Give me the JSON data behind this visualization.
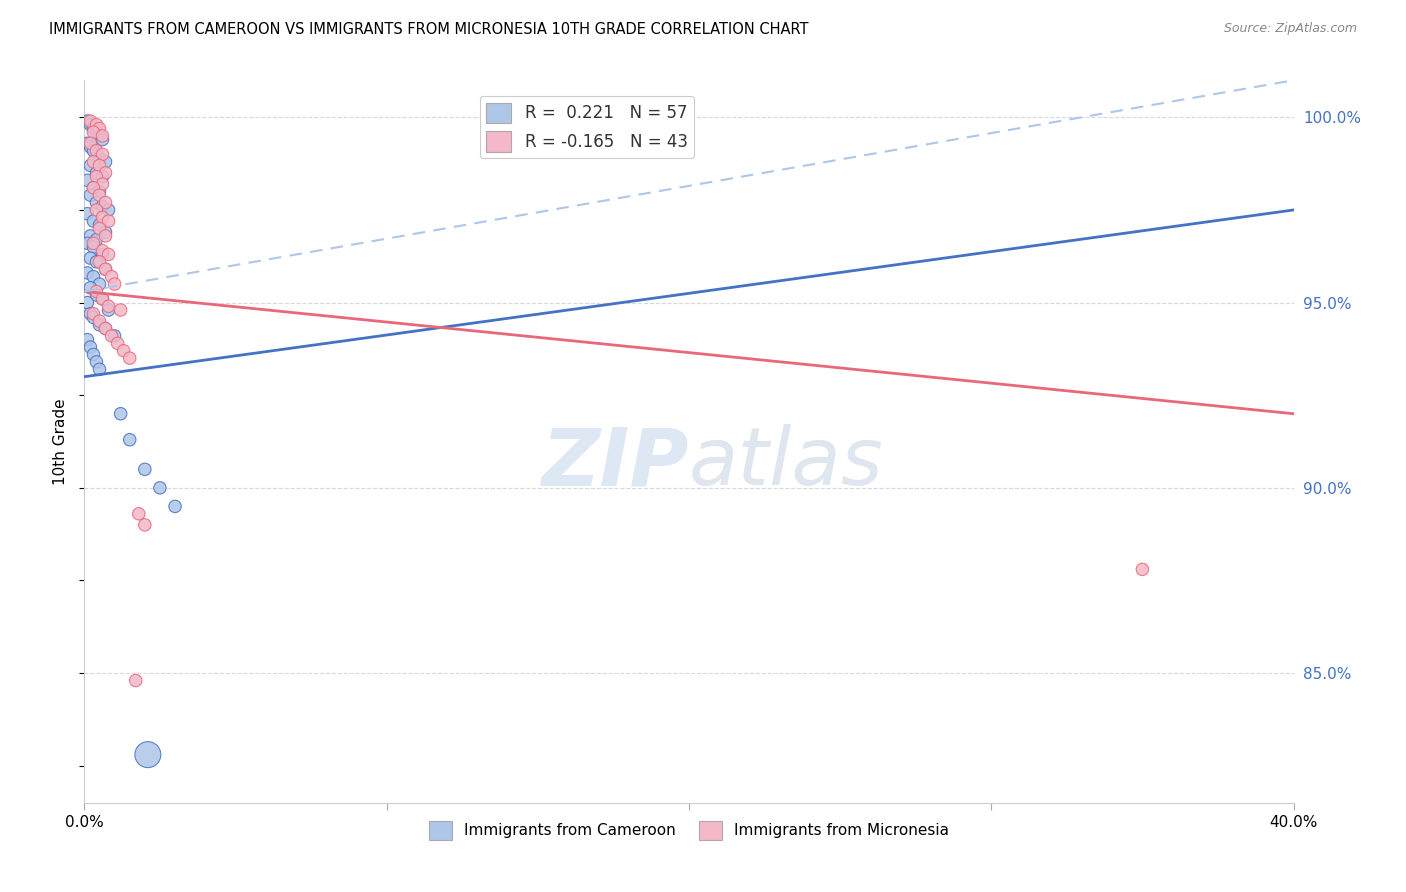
{
  "title": "IMMIGRANTS FROM CAMEROON VS IMMIGRANTS FROM MICRONESIA 10TH GRADE CORRELATION CHART",
  "source": "Source: ZipAtlas.com",
  "ylabel": "10th Grade",
  "right_yticks": [
    "100.0%",
    "95.0%",
    "90.0%",
    "85.0%"
  ],
  "right_ytick_vals": [
    1.0,
    0.95,
    0.9,
    0.85
  ],
  "legend_r1": "R =  0.221",
  "legend_n1": "N = 57",
  "legend_r2": "R = -0.165",
  "legend_n2": "N = 43",
  "legend_label1": "Immigrants from Cameroon",
  "legend_label2": "Immigrants from Micronesia",
  "blue_color": "#aec6e8",
  "pink_color": "#f4b8c8",
  "blue_line_color": "#4472c4",
  "pink_line_color": "#e8687a",
  "dashed_color": "#aec6e8",
  "blue_line": {
    "x0": 0.0,
    "y0": 0.93,
    "x1": 0.4,
    "y1": 0.975
  },
  "pink_line": {
    "x0": 0.0,
    "y0": 0.953,
    "x1": 0.4,
    "y1": 0.92
  },
  "dashed_line": {
    "x0": 0.0,
    "y0": 0.953,
    "x1": 0.4,
    "y1": 1.01
  },
  "xmin": 0.0,
  "xmax": 0.4,
  "ymin": 0.815,
  "ymax": 1.01,
  "watermark_zip": "ZIP",
  "watermark_atlas": "atlas",
  "background_color": "#ffffff",
  "grid_color": "#d8d8d8",
  "blue_scatter_x": [
    0.001,
    0.002,
    0.003,
    0.004,
    0.005,
    0.006,
    0.001,
    0.002,
    0.003,
    0.005,
    0.007,
    0.002,
    0.004,
    0.006,
    0.001,
    0.003,
    0.005,
    0.002,
    0.004,
    0.006,
    0.008,
    0.001,
    0.003,
    0.005,
    0.007,
    0.002,
    0.004,
    0.001,
    0.003,
    0.006,
    0.002,
    0.004,
    0.007,
    0.001,
    0.003,
    0.005,
    0.002,
    0.004,
    0.006,
    0.001,
    0.008,
    0.002,
    0.003,
    0.005,
    0.007,
    0.01,
    0.012,
    0.015,
    0.02,
    0.025,
    0.03,
    0.001,
    0.002,
    0.003,
    0.004,
    0.005,
    0.021
  ],
  "blue_scatter_y": [
    0.999,
    0.998,
    0.997,
    0.996,
    0.995,
    0.994,
    0.993,
    0.992,
    0.991,
    0.989,
    0.988,
    0.987,
    0.985,
    0.984,
    0.983,
    0.981,
    0.98,
    0.979,
    0.977,
    0.976,
    0.975,
    0.974,
    0.972,
    0.971,
    0.969,
    0.968,
    0.967,
    0.966,
    0.965,
    0.963,
    0.962,
    0.961,
    0.959,
    0.958,
    0.957,
    0.955,
    0.954,
    0.952,
    0.951,
    0.95,
    0.948,
    0.947,
    0.946,
    0.944,
    0.943,
    0.941,
    0.92,
    0.913,
    0.905,
    0.9,
    0.895,
    0.94,
    0.938,
    0.936,
    0.934,
    0.932,
    0.828
  ],
  "blue_scatter_sizes": [
    80,
    80,
    80,
    80,
    80,
    80,
    80,
    80,
    80,
    80,
    80,
    80,
    80,
    80,
    80,
    80,
    80,
    80,
    80,
    80,
    80,
    80,
    80,
    80,
    80,
    80,
    80,
    80,
    80,
    80,
    80,
    80,
    80,
    80,
    80,
    80,
    80,
    80,
    80,
    80,
    80,
    80,
    80,
    80,
    80,
    80,
    80,
    80,
    80,
    80,
    80,
    80,
    80,
    80,
    80,
    80,
    350
  ],
  "pink_scatter_x": [
    0.002,
    0.004,
    0.005,
    0.003,
    0.006,
    0.002,
    0.004,
    0.006,
    0.003,
    0.005,
    0.007,
    0.004,
    0.006,
    0.003,
    0.005,
    0.007,
    0.004,
    0.006,
    0.008,
    0.005,
    0.007,
    0.003,
    0.006,
    0.008,
    0.005,
    0.007,
    0.009,
    0.01,
    0.004,
    0.006,
    0.008,
    0.012,
    0.003,
    0.005,
    0.007,
    0.009,
    0.011,
    0.013,
    0.015,
    0.018,
    0.02,
    0.35,
    0.017
  ],
  "pink_scatter_y": [
    0.999,
    0.998,
    0.997,
    0.996,
    0.995,
    0.993,
    0.991,
    0.99,
    0.988,
    0.987,
    0.985,
    0.984,
    0.982,
    0.981,
    0.979,
    0.977,
    0.975,
    0.973,
    0.972,
    0.97,
    0.968,
    0.966,
    0.964,
    0.963,
    0.961,
    0.959,
    0.957,
    0.955,
    0.953,
    0.951,
    0.949,
    0.948,
    0.947,
    0.945,
    0.943,
    0.941,
    0.939,
    0.937,
    0.935,
    0.893,
    0.89,
    0.878,
    0.848
  ],
  "pink_scatter_sizes": [
    80,
    80,
    80,
    80,
    80,
    80,
    80,
    80,
    80,
    80,
    80,
    80,
    80,
    80,
    80,
    80,
    80,
    80,
    80,
    80,
    80,
    80,
    80,
    80,
    80,
    80,
    80,
    80,
    80,
    80,
    80,
    80,
    80,
    80,
    80,
    80,
    80,
    80,
    80,
    80,
    80,
    80,
    80
  ]
}
